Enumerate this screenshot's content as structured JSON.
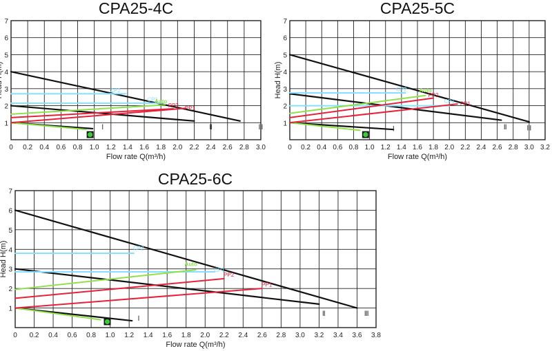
{
  "colors": {
    "black": "#111111",
    "red": "#e8213a",
    "green": "#8fe04a",
    "cyan": "#86e0ff",
    "grid": "#222222",
    "icon_green": "#3cc93c"
  },
  "chart_data": [
    {
      "type": "line",
      "title": "CPA25-4C",
      "xlabel": "Flow rate Q(m³/h)",
      "ylabel": "Head H(m)",
      "xlim": [
        0,
        3.0
      ],
      "ylim": [
        0,
        7
      ],
      "xticks": [
        "0",
        "0.2",
        "0.4",
        "0.6",
        "0.8",
        "1.0",
        "1.2",
        "1.4",
        "1.6",
        "1.8",
        "2.0",
        "2.2",
        "2.4",
        "2.6",
        "2.8",
        "3.0"
      ],
      "yticks": [
        "1",
        "2",
        "3",
        "4",
        "5",
        "6",
        "7"
      ],
      "series": [
        {
          "name": "Ⅲ",
          "color": "black",
          "points": [
            [
              0,
              4.0
            ],
            [
              2.75,
              1.1
            ]
          ],
          "label_at": [
            3.0,
            0.6
          ]
        },
        {
          "name": "Ⅱ",
          "color": "black",
          "points": [
            [
              0,
              2.0
            ],
            [
              2.2,
              1.1
            ]
          ],
          "label_at": [
            2.4,
            0.6
          ]
        },
        {
          "name": "Ⅰ",
          "color": "black",
          "points": [
            [
              0,
              1.0
            ],
            [
              0.98,
              0.65
            ]
          ],
          "label_at": [
            1.1,
            0.6
          ]
        },
        {
          "name": "",
          "color": "green",
          "points": [
            [
              0,
              1.0
            ],
            [
              0.9,
              0.6
            ]
          ]
        },
        {
          "name": "CP2",
          "color": "cyan",
          "points": [
            [
              0,
              2.7
            ],
            [
              1.38,
              2.7
            ]
          ],
          "label_at": [
            1.25,
            2.8
          ]
        },
        {
          "name": "CP1",
          "color": "cyan",
          "points": [
            [
              0,
              2.15
            ],
            [
              1.82,
              2.15
            ]
          ],
          "label_at": [
            1.7,
            2.25
          ]
        },
        {
          "name": "Auto",
          "color": "green",
          "points": [
            [
              0,
              1.5
            ],
            [
              1.85,
              2.05
            ]
          ],
          "label_at": [
            1.8,
            2.15
          ]
        },
        {
          "name": "PP2",
          "color": "red",
          "points": [
            [
              0,
              1.3
            ],
            [
              1.95,
              1.82
            ]
          ],
          "label_at": [
            1.95,
            1.9
          ]
        },
        {
          "name": "PP1",
          "color": "red",
          "points": [
            [
              0,
              1.0
            ],
            [
              2.1,
              1.85
            ]
          ],
          "label_at": [
            2.15,
            1.75
          ]
        }
      ],
      "icon": [
        0.95,
        0.3
      ]
    },
    {
      "type": "line",
      "title": "CPA25-5C",
      "xlabel": "Flow rate Q(m³/h)",
      "ylabel": "Head H(m)",
      "xlim": [
        0,
        3.2
      ],
      "ylim": [
        0,
        7
      ],
      "xticks": [
        "0",
        "0.2",
        "0.4",
        "0.6",
        "0.8",
        "1.0",
        "1.2",
        "1.4",
        "1.6",
        "1.8",
        "2.0",
        "2.2",
        "2.4",
        "2.6",
        "2.8",
        "3.0",
        "3.2"
      ],
      "yticks": [
        "1",
        "2",
        "3",
        "4",
        "5",
        "6",
        "7"
      ],
      "series": [
        {
          "name": "Ⅲ",
          "color": "black",
          "points": [
            [
              0,
              5.0
            ],
            [
              3.0,
              1.05
            ]
          ],
          "label_at": [
            3.0,
            0.55
          ]
        },
        {
          "name": "Ⅱ",
          "color": "black",
          "points": [
            [
              0,
              2.7
            ],
            [
              2.65,
              1.15
            ]
          ],
          "label_at": [
            2.7,
            0.6
          ]
        },
        {
          "name": "Ⅰ",
          "color": "black",
          "points": [
            [
              0,
              1.0
            ],
            [
              1.3,
              0.6
            ]
          ],
          "label_at": [
            1.3,
            0.5
          ]
        },
        {
          "name": "",
          "color": "green",
          "points": [
            [
              0,
              1.0
            ],
            [
              0.88,
              0.55
            ]
          ]
        },
        {
          "name": "CP2",
          "color": "cyan",
          "points": [
            [
              0,
              2.75
            ],
            [
              1.45,
              2.75
            ]
          ],
          "label_at": [
            1.4,
            2.85
          ]
        },
        {
          "name": "CP1",
          "color": "cyan",
          "points": [
            [
              0,
              2.0
            ],
            [
              2.0,
              2.0
            ]
          ],
          "label_at": [
            2.0,
            2.15
          ]
        },
        {
          "name": "Auto",
          "color": "green",
          "points": [
            [
              0,
              1.55
            ],
            [
              1.7,
              2.6
            ]
          ],
          "label_at": [
            1.7,
            2.8
          ]
        },
        {
          "name": "PP2",
          "color": "red",
          "points": [
            [
              0,
              1.3
            ],
            [
              1.8,
              2.45
            ]
          ],
          "label_at": [
            1.8,
            2.5
          ]
        },
        {
          "name": "PP1",
          "color": "red",
          "points": [
            [
              0,
              1.0
            ],
            [
              2.1,
              2.1
            ]
          ],
          "label_at": [
            2.2,
            2.0
          ]
        }
      ],
      "icon": [
        0.95,
        0.3
      ]
    },
    {
      "type": "line",
      "title": "CPA25-6C",
      "xlabel": "Flow rate Q(m³/h)",
      "ylabel": "Head H(m)",
      "xlim": [
        0,
        3.8
      ],
      "ylim": [
        0,
        7
      ],
      "xticks": [
        "0",
        "0.2",
        "0.4",
        "0.6",
        "0.8",
        "1.0",
        "1.2",
        "1.4",
        "1.6",
        "1.8",
        "2.0",
        "2.2",
        "2.4",
        "2.6",
        "2.8",
        "3.0",
        "3.2",
        "3.4",
        "3.6",
        "3.8"
      ],
      "yticks": [
        "1",
        "2",
        "3",
        "4",
        "5",
        "6",
        "7"
      ],
      "series": [
        {
          "name": "Ⅲ",
          "color": "black",
          "points": [
            [
              0,
              6.0
            ],
            [
              3.6,
              1.0
            ]
          ],
          "label_at": [
            3.7,
            0.6
          ]
        },
        {
          "name": "Ⅱ",
          "color": "black",
          "points": [
            [
              0,
              3.0
            ],
            [
              3.2,
              1.2
            ]
          ],
          "label_at": [
            3.25,
            0.6
          ]
        },
        {
          "name": "Ⅰ",
          "color": "black",
          "points": [
            [
              0,
              1.0
            ],
            [
              1.23,
              0.35
            ]
          ],
          "label_at": [
            1.3,
            0.35
          ]
        },
        {
          "name": "",
          "color": "green",
          "points": [
            [
              0,
              1.0
            ],
            [
              0.9,
              0.4
            ]
          ]
        },
        {
          "name": "CP2",
          "color": "cyan",
          "points": [
            [
              0,
              3.8
            ],
            [
              1.25,
              3.8
            ]
          ],
          "label_at": [
            1.3,
            3.95
          ]
        },
        {
          "name": "CP1",
          "color": "cyan",
          "points": [
            [
              0,
              2.85
            ],
            [
              2.1,
              2.85
            ]
          ],
          "label_at": [
            2.15,
            2.85
          ]
        },
        {
          "name": "Auto",
          "color": "green",
          "points": [
            [
              0,
              1.95
            ],
            [
              1.9,
              2.95
            ]
          ],
          "label_at": [
            1.85,
            3.15
          ]
        },
        {
          "name": "PP2",
          "color": "red",
          "points": [
            [
              0,
              1.5
            ],
            [
              2.2,
              2.5
            ]
          ],
          "label_at": [
            2.25,
            2.6
          ]
        },
        {
          "name": "PP1",
          "color": "red",
          "points": [
            [
              0,
              1.0
            ],
            [
              2.6,
              2.0
            ]
          ],
          "label_at": [
            2.65,
            2.1
          ]
        }
      ],
      "icon": [
        0.97,
        0.3
      ]
    }
  ]
}
